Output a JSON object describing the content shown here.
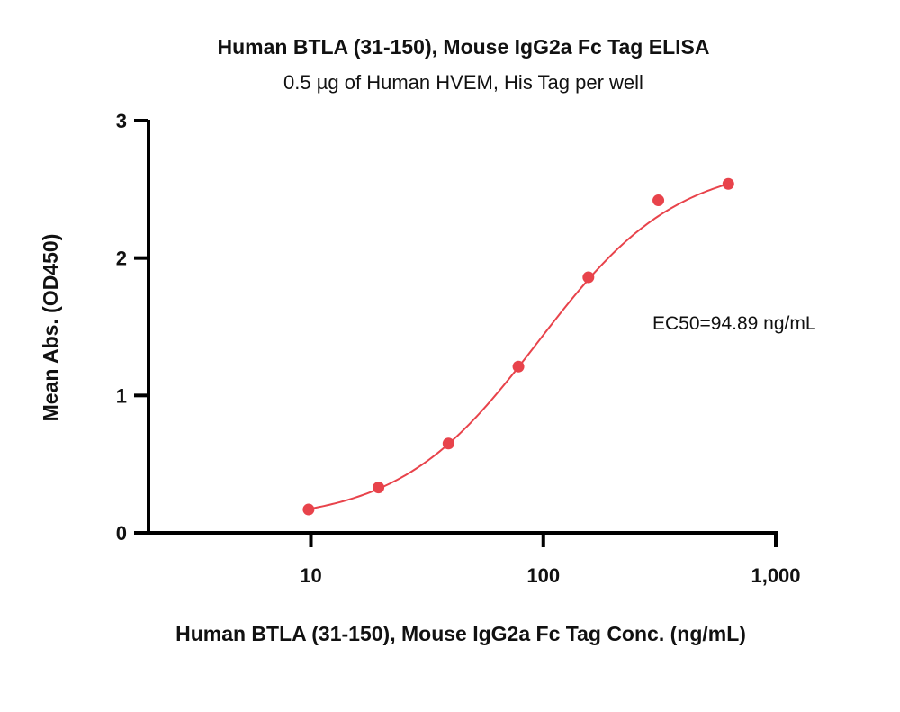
{
  "chart_data": {
    "type": "scatter",
    "title": "Human BTLA (31-150), Mouse IgG2a Fc Tag ELISA",
    "subtitle": "0.5 µg of Human HVEM, His Tag per well",
    "xlabel": "Human BTLA (31-150), Mouse IgG2a Fc Tag Conc. (ng/mL)",
    "ylabel": "Mean Abs. (OD450)",
    "x_scale": "log",
    "xlim": [
      2,
      1000
    ],
    "ylim": [
      0,
      3
    ],
    "x_ticks": [
      10,
      100,
      1000
    ],
    "x_tick_labels": [
      "10",
      "100",
      "1,000"
    ],
    "y_ticks": [
      0,
      1,
      2,
      3
    ],
    "y_tick_labels": [
      "0",
      "1",
      "2",
      "3"
    ],
    "grid": false,
    "legend": "none",
    "colors": {
      "series": "#e8434b",
      "axis": "#000000"
    },
    "series": [
      {
        "x": [
          9.77,
          19.53,
          39.06,
          78.13,
          156.25,
          312.5,
          625
        ],
        "y": [
          0.17,
          0.33,
          0.65,
          1.21,
          1.86,
          2.42,
          2.54
        ],
        "fit": "4PL"
      }
    ],
    "annotation": "EC50=94.89 ng/mL"
  }
}
